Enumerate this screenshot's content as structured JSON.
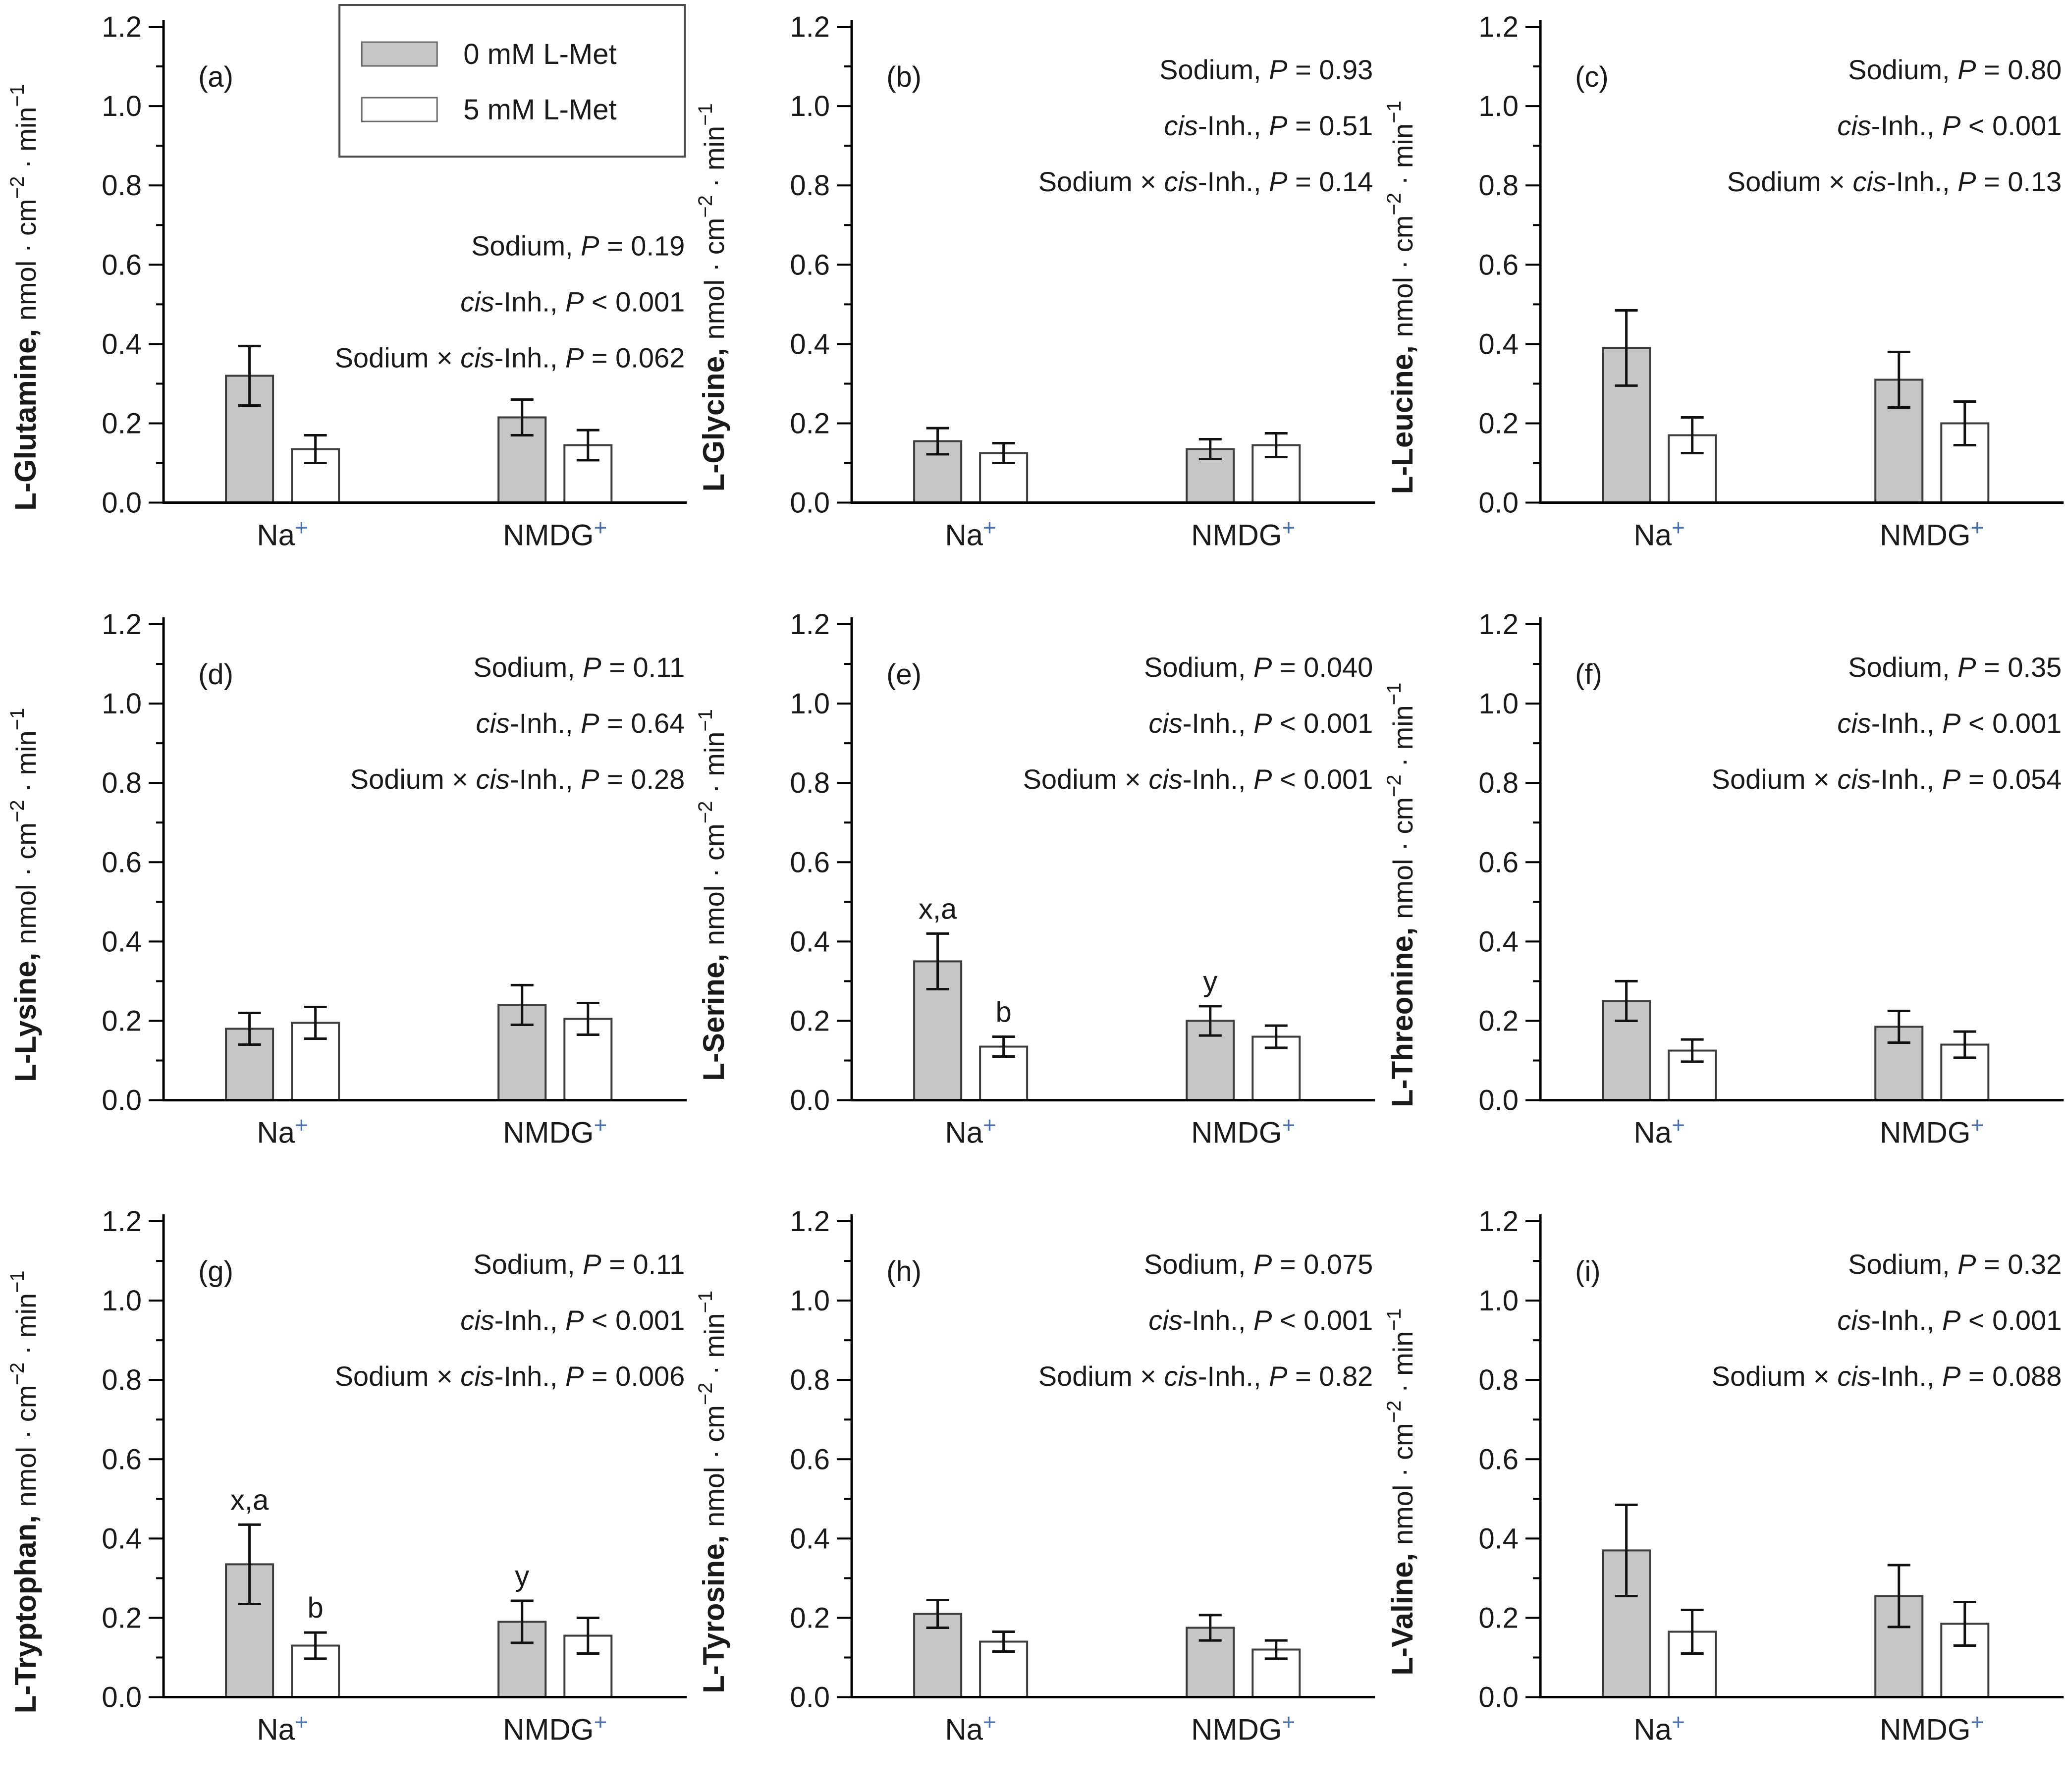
{
  "figure": {
    "legend": {
      "entries": [
        {
          "label": "0 mM L-Met",
          "fill": "#c6c6c6"
        },
        {
          "label": "5 mM L-Met",
          "fill": "#ffffff"
        }
      ]
    },
    "axes": {
      "ylim": [
        0,
        1.2
      ],
      "ytick_major_step": 0.2,
      "ytick_minor_step": 0.1,
      "ytick_labels": [
        "0.0",
        "0.2",
        "0.4",
        "0.6",
        "0.8",
        "1.0",
        "1.2"
      ],
      "categories": [
        {
          "base": "Na",
          "sup": "+"
        },
        {
          "base": "NMDG",
          "sup": "+"
        }
      ],
      "ylabel_units_segments": [
        {
          "text": "nmol · cm",
          "sup": false
        },
        {
          "text": "−2",
          "sup": true
        },
        {
          "text": " · min",
          "sup": false
        },
        {
          "text": "−1",
          "sup": true
        }
      ]
    },
    "stats_line_templates": [
      [
        {
          "text": "Sodium, ",
          "italic": false
        },
        {
          "text": "P",
          "italic": true
        }
      ],
      [
        {
          "text": "cis",
          "italic": true
        },
        {
          "text": "-Inh., ",
          "italic": false
        },
        {
          "text": "P",
          "italic": true
        }
      ],
      [
        {
          "text": "Sodium × ",
          "italic": false
        },
        {
          "text": "cis",
          "italic": true
        },
        {
          "text": "-Inh., ",
          "italic": false
        },
        {
          "text": "P",
          "italic": true
        }
      ]
    ],
    "colors": {
      "bar_gray": "#c6c6c6",
      "bar_white": "#ffffff",
      "bar_stroke": "#3d3d3d",
      "axis": "#000000",
      "error_bar": "#111111",
      "text": "#1a1a1a",
      "plus_superscript": "#4a6fa8",
      "legend_border": "#4d4d4d"
    }
  },
  "chart_data": [
    {
      "type": "bar",
      "letter": "(a)",
      "ylabel_name": "L-Glutamine,",
      "show_legend": true,
      "p_values": [
        " = 0.19",
        " < 0.001",
        " = 0.062"
      ],
      "categories": [
        "Na+",
        "NMDG+"
      ],
      "series": [
        {
          "name": "0 mM L-Met",
          "values": [
            0.32,
            0.215
          ],
          "errors": [
            0.075,
            0.045
          ],
          "notes": [
            "",
            ""
          ]
        },
        {
          "name": "5 mM L-Met",
          "values": [
            0.135,
            0.145
          ],
          "errors": [
            0.035,
            0.038
          ],
          "notes": [
            "",
            ""
          ]
        }
      ]
    },
    {
      "type": "bar",
      "letter": "(b)",
      "ylabel_name": "L-Glycine,",
      "show_legend": false,
      "p_values": [
        " = 0.93",
        " = 0.51",
        " = 0.14"
      ],
      "categories": [
        "Na+",
        "NMDG+"
      ],
      "series": [
        {
          "name": "0 mM L-Met",
          "values": [
            0.155,
            0.135
          ],
          "errors": [
            0.033,
            0.025
          ],
          "notes": [
            "",
            ""
          ]
        },
        {
          "name": "5 mM L-Met",
          "values": [
            0.125,
            0.145
          ],
          "errors": [
            0.025,
            0.03
          ],
          "notes": [
            "",
            ""
          ]
        }
      ]
    },
    {
      "type": "bar",
      "letter": "(c)",
      "ylabel_name": "L-Leucine,",
      "show_legend": false,
      "p_values": [
        " = 0.80",
        " < 0.001",
        " = 0.13"
      ],
      "categories": [
        "Na+",
        "NMDG+"
      ],
      "series": [
        {
          "name": "0 mM L-Met",
          "values": [
            0.39,
            0.31
          ],
          "errors": [
            0.095,
            0.07
          ],
          "notes": [
            "",
            ""
          ]
        },
        {
          "name": "5 mM L-Met",
          "values": [
            0.17,
            0.2
          ],
          "errors": [
            0.045,
            0.055
          ],
          "notes": [
            "",
            ""
          ]
        }
      ]
    },
    {
      "type": "bar",
      "letter": "(d)",
      "ylabel_name": "L-Lysine,",
      "show_legend": false,
      "p_values": [
        " = 0.11",
        " = 0.64",
        " = 0.28"
      ],
      "categories": [
        "Na+",
        "NMDG+"
      ],
      "series": [
        {
          "name": "0 mM L-Met",
          "values": [
            0.18,
            0.24
          ],
          "errors": [
            0.04,
            0.05
          ],
          "notes": [
            "",
            ""
          ]
        },
        {
          "name": "5 mM L-Met",
          "values": [
            0.195,
            0.205
          ],
          "errors": [
            0.04,
            0.04
          ],
          "notes": [
            "",
            ""
          ]
        }
      ]
    },
    {
      "type": "bar",
      "letter": "(e)",
      "ylabel_name": "L-Serine,",
      "show_legend": false,
      "p_values": [
        " = 0.040",
        " < 0.001",
        " < 0.001"
      ],
      "categories": [
        "Na+",
        "NMDG+"
      ],
      "series": [
        {
          "name": "0 mM L-Met",
          "values": [
            0.35,
            0.2
          ],
          "errors": [
            0.07,
            0.037
          ],
          "notes": [
            "x,a",
            "y"
          ]
        },
        {
          "name": "5 mM L-Met",
          "values": [
            0.135,
            0.16
          ],
          "errors": [
            0.025,
            0.028
          ],
          "notes": [
            "b",
            ""
          ]
        }
      ]
    },
    {
      "type": "bar",
      "letter": "(f)",
      "ylabel_name": "L-Threonine,",
      "show_legend": false,
      "p_values": [
        " = 0.35",
        " < 0.001",
        " = 0.054"
      ],
      "categories": [
        "Na+",
        "NMDG+"
      ],
      "series": [
        {
          "name": "0 mM L-Met",
          "values": [
            0.25,
            0.185
          ],
          "errors": [
            0.05,
            0.04
          ],
          "notes": [
            "",
            ""
          ]
        },
        {
          "name": "5 mM L-Met",
          "values": [
            0.125,
            0.14
          ],
          "errors": [
            0.028,
            0.033
          ],
          "notes": [
            "",
            ""
          ]
        }
      ]
    },
    {
      "type": "bar",
      "letter": "(g)",
      "ylabel_name": "L-Tryptophan,",
      "show_legend": false,
      "p_values": [
        " = 0.11",
        " < 0.001",
        " = 0.006"
      ],
      "categories": [
        "Na+",
        "NMDG+"
      ],
      "series": [
        {
          "name": "0 mM L-Met",
          "values": [
            0.335,
            0.19
          ],
          "errors": [
            0.1,
            0.053
          ],
          "notes": [
            "x,a",
            "y"
          ]
        },
        {
          "name": "5 mM L-Met",
          "values": [
            0.13,
            0.155
          ],
          "errors": [
            0.033,
            0.045
          ],
          "notes": [
            "b",
            ""
          ]
        }
      ]
    },
    {
      "type": "bar",
      "letter": "(h)",
      "ylabel_name": "L-Tyrosine,",
      "show_legend": false,
      "p_values": [
        " = 0.075",
        " < 0.001",
        " = 0.82"
      ],
      "categories": [
        "Na+",
        "NMDG+"
      ],
      "series": [
        {
          "name": "0 mM L-Met",
          "values": [
            0.21,
            0.175
          ],
          "errors": [
            0.035,
            0.032
          ],
          "notes": [
            "",
            ""
          ]
        },
        {
          "name": "5 mM L-Met",
          "values": [
            0.14,
            0.12
          ],
          "errors": [
            0.025,
            0.023
          ],
          "notes": [
            "",
            ""
          ]
        }
      ]
    },
    {
      "type": "bar",
      "letter": "(i)",
      "ylabel_name": "L-Valine,",
      "show_legend": false,
      "p_values": [
        " = 0.32",
        " < 0.001",
        " = 0.088"
      ],
      "categories": [
        "Na+",
        "NMDG+"
      ],
      "series": [
        {
          "name": "0 mM L-Met",
          "values": [
            0.37,
            0.255
          ],
          "errors": [
            0.115,
            0.078
          ],
          "notes": [
            "",
            ""
          ]
        },
        {
          "name": "5 mM L-Met",
          "values": [
            0.165,
            0.185
          ],
          "errors": [
            0.055,
            0.055
          ],
          "notes": [
            "",
            ""
          ]
        }
      ]
    }
  ]
}
